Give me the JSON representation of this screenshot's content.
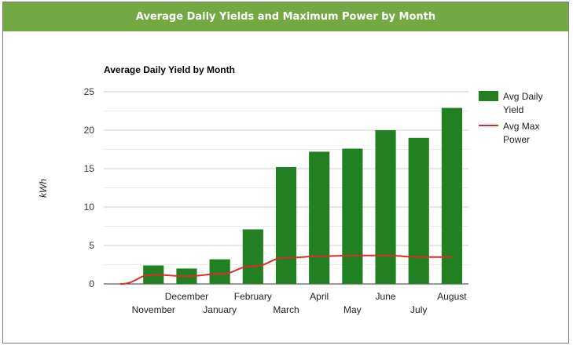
{
  "panel": {
    "title": "Average Daily Yields and Maximum Power by Month"
  },
  "chart_data": {
    "type": "bar",
    "title": "Average Daily Yield by Month",
    "xlabel": "",
    "ylabel": "kWh",
    "ylim": [
      0,
      25
    ],
    "yticks": [
      0,
      5,
      10,
      15,
      20,
      25
    ],
    "grid": true,
    "legend_position": "right",
    "categories": [
      "",
      "November",
      "December",
      "January",
      "February",
      "March",
      "April",
      "May",
      "June",
      "July",
      "August"
    ],
    "series": [
      {
        "name": "Avg Daily Yield",
        "type": "bar",
        "color": "#218021",
        "values": [
          null,
          2.4,
          2.0,
          3.2,
          7.1,
          15.2,
          17.2,
          17.6,
          20.0,
          19.0,
          22.9
        ]
      },
      {
        "name": "Avg Max Power",
        "type": "line",
        "color": "#dd2a2a",
        "values": [
          0.0,
          1.2,
          1.0,
          1.3,
          2.3,
          3.4,
          3.6,
          3.7,
          3.7,
          3.5,
          3.5
        ]
      }
    ],
    "legend": [
      {
        "lines": [
          "Avg Daily",
          "Yield"
        ],
        "series": 0
      },
      {
        "lines": [
          "Avg Max",
          "Power"
        ],
        "series": 1
      }
    ]
  }
}
